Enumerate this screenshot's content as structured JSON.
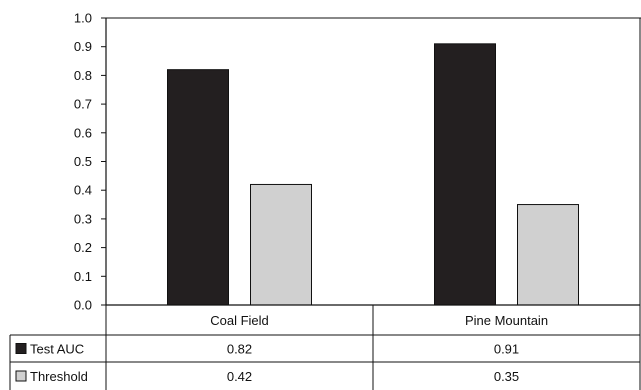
{
  "chart_data": {
    "type": "bar",
    "categories": [
      "Coal Field",
      "Pine Mountain"
    ],
    "series": [
      {
        "name": "Test AUC",
        "values": [
          0.82,
          0.91
        ],
        "color": "#231f20"
      },
      {
        "name": "Threshold",
        "values": [
          0.42,
          0.35
        ],
        "color": "#d0d0d0"
      }
    ],
    "value_labels": [
      [
        "0.82",
        "0.91"
      ],
      [
        "0.42",
        "0.35"
      ]
    ],
    "yticks": [
      0.0,
      0.1,
      0.2,
      0.3,
      0.4,
      0.5,
      0.6,
      0.7,
      0.8,
      0.9,
      1.0
    ],
    "ytick_labels": [
      "0.0",
      "0.1",
      "0.2",
      "0.3",
      "0.4",
      "0.5",
      "0.6",
      "0.7",
      "0.8",
      "0.9",
      "1.0"
    ],
    "ylim": [
      0,
      1.0
    ],
    "grid": false,
    "legend": "data-table-below"
  }
}
